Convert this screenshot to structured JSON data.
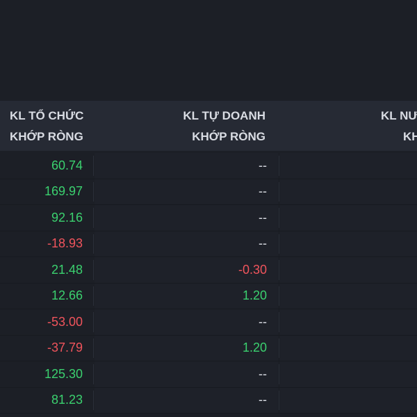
{
  "header": {
    "col1": {
      "line1": "KL TỔ CHỨC",
      "line2": "KHỚP RÒNG"
    },
    "col2": {
      "line1": "KL TỰ DOANH",
      "line2": "KHỚP RÒNG"
    },
    "col3": {
      "line1": "KL NƯ",
      "line2": "KH"
    }
  },
  "colors": {
    "positive": "#3bd16f",
    "negative": "#f0545c",
    "neutral": "#d9dce3",
    "background": "#1c1f26",
    "header_background": "#262a34"
  },
  "rows": [
    {
      "org": "60.74",
      "org_sign": "pos",
      "prop": "--",
      "prop_sign": "nil"
    },
    {
      "org": "169.97",
      "org_sign": "pos",
      "prop": "--",
      "prop_sign": "nil"
    },
    {
      "org": "92.16",
      "org_sign": "pos",
      "prop": "--",
      "prop_sign": "nil"
    },
    {
      "org": "-18.93",
      "org_sign": "neg",
      "prop": "--",
      "prop_sign": "nil"
    },
    {
      "org": "21.48",
      "org_sign": "pos",
      "prop": "-0.30",
      "prop_sign": "neg"
    },
    {
      "org": "12.66",
      "org_sign": "pos",
      "prop": "1.20",
      "prop_sign": "pos"
    },
    {
      "org": "-53.00",
      "org_sign": "neg",
      "prop": "--",
      "prop_sign": "nil"
    },
    {
      "org": "-37.79",
      "org_sign": "neg",
      "prop": "1.20",
      "prop_sign": "pos"
    },
    {
      "org": "125.30",
      "org_sign": "pos",
      "prop": "--",
      "prop_sign": "nil"
    },
    {
      "org": "81.23",
      "org_sign": "pos",
      "prop": "--",
      "prop_sign": "nil"
    }
  ]
}
